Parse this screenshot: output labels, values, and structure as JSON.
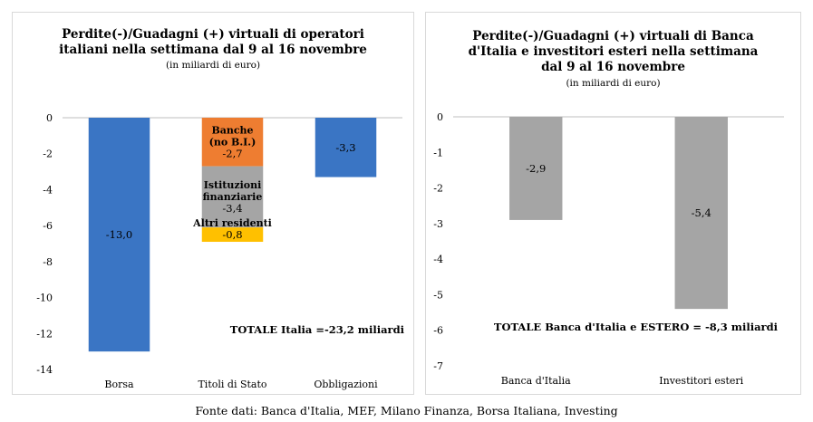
{
  "chart_data": [
    {
      "type": "bar",
      "title_lines": [
        "Perdite(-)/Guadagni (+) virtuali di operatori",
        "italiani nella settimana dal 9 al 16 novembre"
      ],
      "subtitle": "(in miliardi di euro)",
      "categories": [
        "Borsa",
        "Titoli di Stato",
        "Obbligazioni"
      ],
      "ylim": [
        -14,
        0
      ],
      "y_ticks": [
        0,
        -2,
        -4,
        -6,
        -8,
        -10,
        -12,
        -14
      ],
      "y_tick_labels": [
        "0",
        "-2",
        "-4",
        "-6",
        "-8",
        "-10",
        "-12",
        "-14"
      ],
      "stacked": true,
      "series": [
        {
          "segment_label": "",
          "color": "#3a75c4",
          "values": [
            -13.0,
            0,
            -3.3
          ],
          "value_labels": [
            "-13,0",
            "",
            "-3,3"
          ]
        },
        {
          "segment_label": "Banche (no B.I.)",
          "segment_label_lines": [
            "Banche",
            "(no B.I.)"
          ],
          "color": "#ee7d31",
          "values": [
            0,
            -2.7,
            0
          ],
          "value_labels": [
            "",
            "-2,7",
            ""
          ]
        },
        {
          "segment_label": "Istituzioni finanziarie",
          "segment_label_lines": [
            "Istituzioni",
            "finanziarie"
          ],
          "color": "#a5a5a5",
          "values": [
            0,
            -3.4,
            0
          ],
          "value_labels": [
            "",
            "-3,4",
            ""
          ]
        },
        {
          "segment_label": "Altri residenti",
          "segment_label_lines": [
            "Altri residenti"
          ],
          "color": "#ffc000",
          "values": [
            0,
            -0.8,
            0
          ],
          "value_labels": [
            "",
            "-0,8",
            ""
          ]
        }
      ],
      "annotation": "TOTALE  Italia =-23,2 miliardi"
    },
    {
      "type": "bar",
      "title_lines": [
        "Perdite(-)/Guadagni (+)  virtuali di Banca",
        "d'Italia e investitori esteri  nella settimana",
        "dal 9 al 16 novembre"
      ],
      "subtitle": "(in miliardi di euro)",
      "categories": [
        "Banca d'Italia",
        "Investitori esteri"
      ],
      "ylim": [
        -7,
        0
      ],
      "y_ticks": [
        0,
        -1,
        -2,
        -3,
        -4,
        -5,
        -6,
        -7
      ],
      "y_tick_labels": [
        "0",
        "-1",
        "-2",
        "-3",
        "-4",
        "-5",
        "-6",
        "-7"
      ],
      "series": [
        {
          "color": "#a5a5a5",
          "values": [
            -2.9,
            -5.4
          ],
          "value_labels": [
            "-2,9",
            "-5,4"
          ]
        }
      ],
      "annotation": "TOTALE  Banca d'Italia e ESTERO = -8,3 miliardi"
    }
  ],
  "source": "Fonte dati: Banca d'Italia, MEF, Milano Finanza, Borsa Italiana, Investing"
}
